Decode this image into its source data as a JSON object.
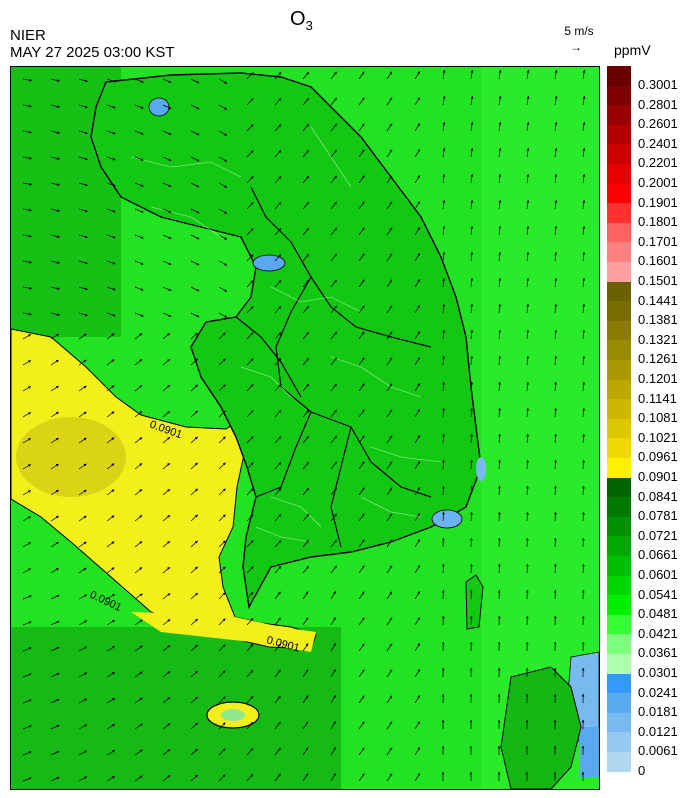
{
  "header": {
    "org": "NIER",
    "datetime": "MAY 27 2025 03:00 KST",
    "title_main": "O",
    "title_sub": "3",
    "wind_reference": "5 m/s",
    "wind_arrow": "→",
    "units": "ppmV"
  },
  "legend": {
    "labels": [
      "0.3001",
      "0.2801",
      "0.2601",
      "0.2401",
      "0.2201",
      "0.2001",
      "0.1901",
      "0.1801",
      "0.1701",
      "0.1601",
      "0.1501",
      "0.1441",
      "0.1381",
      "0.1321",
      "0.1261",
      "0.1201",
      "0.1141",
      "0.1081",
      "0.1021",
      "0.0961",
      "0.0901",
      "0.0841",
      "0.0781",
      "0.0721",
      "0.0661",
      "0.0601",
      "0.0541",
      "0.0481",
      "0.0421",
      "0.0361",
      "0.0301",
      "0.0241",
      "0.0181",
      "0.0121",
      "0.0061",
      "0"
    ],
    "colors": [
      "#6b0000",
      "#7f0000",
      "#990000",
      "#b20000",
      "#cc0000",
      "#e60000",
      "#ff0000",
      "#ff3030",
      "#ff6060",
      "#ff8080",
      "#ffa0a0",
      "#6b5f00",
      "#7a6d00",
      "#8a7b00",
      "#9a8a00",
      "#ab9900",
      "#bca800",
      "#ccb800",
      "#ddc800",
      "#eed800",
      "#fff000",
      "#006400",
      "#007a00",
      "#009100",
      "#00a800",
      "#00bf00",
      "#00d600",
      "#00ee00",
      "#33ff33",
      "#7dff7d",
      "#b0ffb0",
      "#3399ff",
      "#5aaaf0",
      "#78baf0",
      "#96c8f0",
      "#b0d8f0"
    ]
  },
  "map": {
    "contour_label": "0.0901"
  }
}
